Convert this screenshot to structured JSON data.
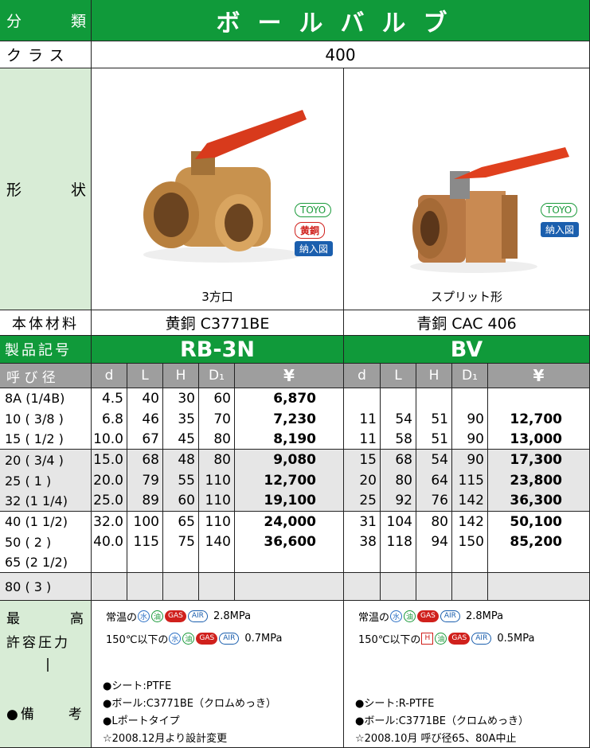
{
  "header": {
    "category_label": "分　　類",
    "category": "ボールバルブ",
    "class_label": "クラス",
    "class": "400",
    "shape_label": "形　　状",
    "material_label": "本体材料",
    "code_label": "製品記号"
  },
  "products": [
    {
      "code": "RB-3N",
      "caption": "3方口",
      "material": "黄銅 C3771BE",
      "badges": [
        "TOYO",
        "黄銅",
        "納入図"
      ],
      "pressure": [
        {
          "prefix": "常温の",
          "media": [
            "水",
            "油",
            "GAS",
            "AIR"
          ],
          "value": "2.8MPa"
        },
        {
          "prefix": "150℃以下の",
          "media": [
            "水",
            "油",
            "GAS",
            "AIR"
          ],
          "value": "0.7MPa"
        }
      ],
      "remarks": [
        "●シート:PTFE",
        "●ボール:C3771BE（クロムめっき）",
        "●Lポートタイプ",
        "☆2008.12月より設計変更"
      ]
    },
    {
      "code": "BV",
      "caption": "スプリット形",
      "material": "青銅 CAC 406",
      "badges": [
        "TOYO",
        "納入図"
      ],
      "pressure": [
        {
          "prefix": "常温の",
          "media": [
            "水",
            "油",
            "GAS",
            "AIR"
          ],
          "value": "2.8MPa"
        },
        {
          "prefix": "150℃以下の",
          "media": [
            "H",
            "油",
            "GAS",
            "AIR"
          ],
          "value": "0.5MPa"
        }
      ],
      "remarks": [
        "●シート:R-PTFE",
        "●ボール:C3771BE（クロムめっき）",
        "☆2008.10月 呼び径65、80A中止"
      ]
    }
  ],
  "table": {
    "size_label": "呼 び 径",
    "columns": [
      "d",
      "L",
      "H",
      "D₁",
      "¥"
    ],
    "rows": [
      {
        "size": "8A (1/4B)",
        "rb3n": [
          "4.5",
          "40",
          "30",
          "60",
          "6,870"
        ],
        "bv": null
      },
      {
        "size": "10 ( 3/8 )",
        "rb3n": [
          "6.8",
          "46",
          "35",
          "70",
          "7,230"
        ],
        "bv": [
          "11",
          "54",
          "51",
          "90",
          "12,700"
        ]
      },
      {
        "size": "15 ( 1/2 )",
        "rb3n": [
          "10.0",
          "67",
          "45",
          "80",
          "8,190"
        ],
        "bv": [
          "11",
          "58",
          "51",
          "90",
          "13,000"
        ]
      },
      {
        "size": "20 ( 3/4 )",
        "rb3n": [
          "15.0",
          "68",
          "48",
          "80",
          "9,080"
        ],
        "bv": [
          "15",
          "68",
          "54",
          "90",
          "17,300"
        ]
      },
      {
        "size": "25 (  1  )",
        "rb3n": [
          "20.0",
          "79",
          "55",
          "110",
          "12,700"
        ],
        "bv": [
          "20",
          "80",
          "64",
          "115",
          "23,800"
        ]
      },
      {
        "size": "32 (1 1/4)",
        "rb3n": [
          "25.0",
          "89",
          "60",
          "110",
          "19,100"
        ],
        "bv": [
          "25",
          "92",
          "76",
          "142",
          "36,300"
        ]
      },
      {
        "size": "40 (1 1/2)",
        "rb3n": [
          "32.0",
          "100",
          "65",
          "110",
          "24,000"
        ],
        "bv": [
          "31",
          "104",
          "80",
          "142",
          "50,100"
        ]
      },
      {
        "size": "50 (  2  )",
        "rb3n": [
          "40.0",
          "115",
          "75",
          "140",
          "36,600"
        ],
        "bv": [
          "38",
          "118",
          "94",
          "150",
          "85,200"
        ]
      },
      {
        "size": "65 (2 1/2)",
        "rb3n": null,
        "bv": null
      },
      {
        "size": "80 (  3  )",
        "rb3n": null,
        "bv": null
      }
    ]
  },
  "bottom_labels": [
    "最　　　高",
    "許容圧力",
    "|",
    "●備　　考"
  ]
}
